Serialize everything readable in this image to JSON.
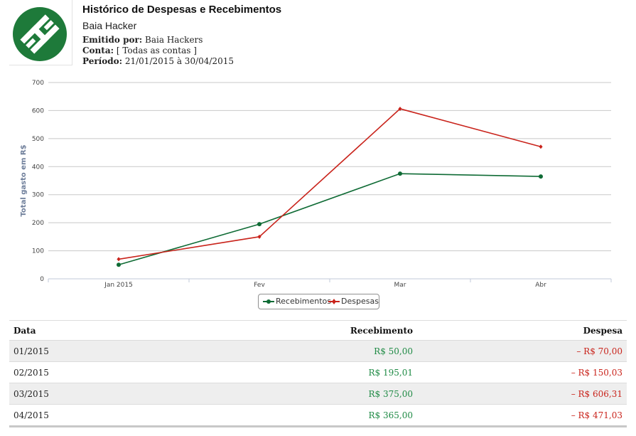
{
  "report": {
    "title": "Histórico de Despesas e Recebimentos",
    "company": "Baia Hacker",
    "emitted_label": "Emitido por:",
    "emitted_value": " Baia Hackers",
    "account_label": "Conta:",
    "account_value": " [ Todas as contas ]",
    "period_label": "Período:",
    "period_value": " 21/01/2015 à 30/04/2015",
    "logo_color": "#1e7a3a"
  },
  "chart_data": {
    "type": "line",
    "categories": [
      "Jan 2015",
      "Fev",
      "Mar",
      "Abr"
    ],
    "ylabel": "Total gasto em R$",
    "xlabel": "",
    "ylim": [
      0,
      700
    ],
    "yticks": [
      0,
      100,
      200,
      300,
      400,
      500,
      600,
      700
    ],
    "grid": true,
    "legend_position": "bottom-center",
    "series": [
      {
        "name": "Recebimentos",
        "color": "#0f6b35",
        "marker": "circle",
        "values": [
          50.0,
          195.01,
          375.0,
          365.0
        ]
      },
      {
        "name": "Despesas",
        "color": "#c9231b",
        "marker": "diamond",
        "values": [
          70.0,
          150.03,
          606.31,
          471.03
        ]
      }
    ]
  },
  "table": {
    "headers": {
      "date": "Data",
      "income": "Recebimento",
      "expense": "Despesa"
    },
    "rows": [
      {
        "date": "01/2015",
        "income": "R$ 50,00",
        "expense": "– R$ 70,00"
      },
      {
        "date": "02/2015",
        "income": "R$ 195,01",
        "expense": "– R$ 150,03"
      },
      {
        "date": "03/2015",
        "income": "R$ 375,00",
        "expense": "– R$ 606,31"
      },
      {
        "date": "04/2015",
        "income": "R$ 365,00",
        "expense": "– R$ 471,03"
      }
    ]
  }
}
